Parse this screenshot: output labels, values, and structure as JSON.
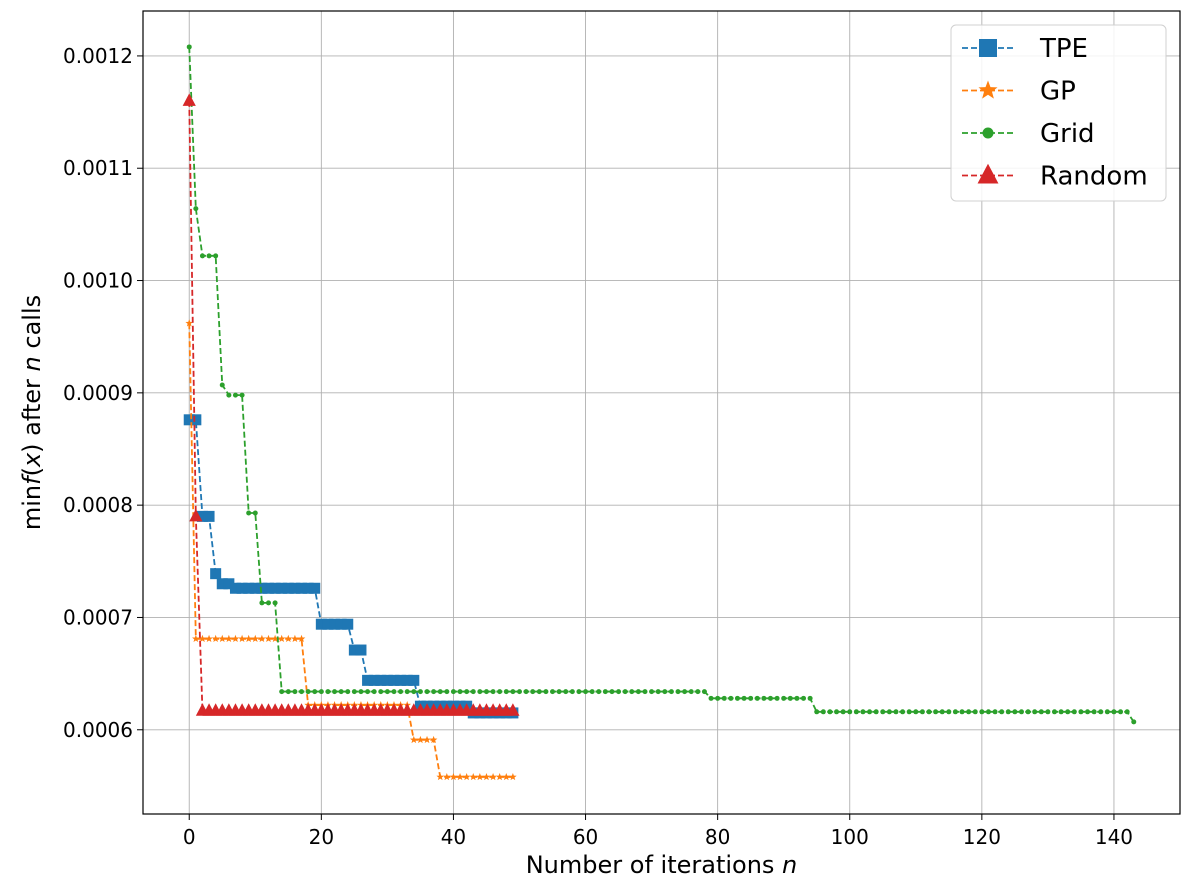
{
  "chart_data": {
    "type": "line",
    "xlabel_prefix": "Number of iterations ",
    "xlabel_var": "n",
    "ylabel_parts": [
      "min",
      "f",
      "(",
      "x",
      ")  after ",
      "n",
      " calls"
    ],
    "xlim": [
      -7,
      150
    ],
    "ylim": [
      0.000525,
      0.00124
    ],
    "xticks": [
      0,
      20,
      40,
      60,
      80,
      100,
      120,
      140
    ],
    "yticks": [
      0.0006,
      0.0007,
      0.0008,
      0.0009,
      0.001,
      0.0011,
      0.0012
    ],
    "ytick_labels": [
      "0.0006",
      "0.0007",
      "0.0008",
      "0.0009",
      "0.0010",
      "0.0011",
      "0.0012"
    ],
    "grid": true,
    "legend_position": "top-right",
    "series": [
      {
        "name": "TPE",
        "color": "#1f77b4",
        "marker": "square",
        "linestyle": "dashed",
        "segments": [
          [
            0,
            1,
            0.000876
          ],
          [
            2,
            3,
            0.00079
          ],
          [
            4,
            4,
            0.000739
          ],
          [
            5,
            6,
            0.00073
          ],
          [
            7,
            19,
            0.000726
          ],
          [
            20,
            24,
            0.000694
          ],
          [
            25,
            26,
            0.000671
          ],
          [
            27,
            34,
            0.000644
          ],
          [
            35,
            42,
            0.000621
          ],
          [
            43,
            49,
            0.000615
          ]
        ]
      },
      {
        "name": "GP",
        "color": "#ff7f0e",
        "marker": "star",
        "linestyle": "dashed",
        "segments": [
          [
            0,
            0,
            0.000962
          ],
          [
            1,
            17,
            0.000681
          ],
          [
            18,
            33,
            0.000622
          ],
          [
            34,
            37,
            0.000591
          ],
          [
            38,
            49,
            0.000558
          ]
        ]
      },
      {
        "name": "Grid",
        "color": "#2ca02c",
        "marker": "circle",
        "linestyle": "dashed",
        "segments": [
          [
            0,
            0,
            0.001208
          ],
          [
            1,
            1,
            0.001064
          ],
          [
            2,
            4,
            0.001022
          ],
          [
            5,
            5,
            0.000907
          ],
          [
            6,
            8,
            0.000898
          ],
          [
            9,
            10,
            0.000793
          ],
          [
            11,
            13,
            0.000713
          ],
          [
            14,
            78,
            0.000634
          ],
          [
            79,
            94,
            0.000628
          ],
          [
            95,
            142,
            0.000616
          ],
          [
            143,
            143,
            0.000607
          ]
        ]
      },
      {
        "name": "Random",
        "color": "#d62728",
        "marker": "triangle",
        "linestyle": "dashed",
        "segments": [
          [
            0,
            0,
            0.00116
          ],
          [
            1,
            1,
            0.00079
          ],
          [
            2,
            49,
            0.000617
          ]
        ]
      }
    ]
  }
}
